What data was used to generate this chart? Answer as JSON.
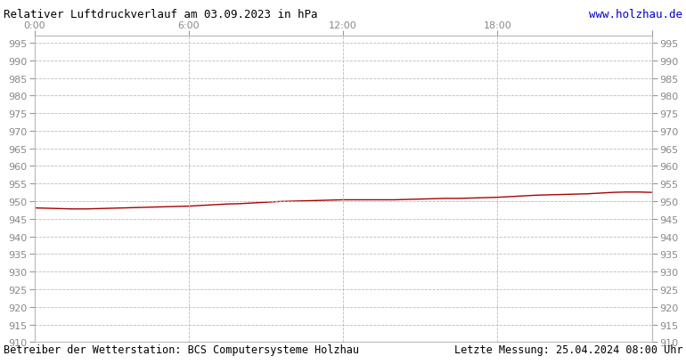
{
  "title": "Relativer Luftdruckverlauf am 03.09.2023 in hPa",
  "url": "www.holzhau.de",
  "footer_left": "Betreiber der Wetterstation: BCS Computersysteme Holzhau",
  "footer_right": "Letzte Messung: 25.04.2024 08:00 Uhr",
  "bg_color": "#ffffff",
  "plot_bg_color": "#ffffff",
  "line_color": "#aa0000",
  "grid_color": "#bbbbbb",
  "title_color": "#000000",
  "url_color": "#0000cc",
  "footer_color": "#000000",
  "tick_label_color": "#888888",
  "ylim": [
    910,
    997
  ],
  "ytick_min": 910,
  "ytick_max": 995,
  "ytick_step": 5,
  "xlim": [
    0,
    1440
  ],
  "xticks": [
    0,
    360,
    720,
    1080,
    1440
  ],
  "xtick_labels": [
    "0:00",
    "6:00",
    "12:00",
    "18:00",
    ""
  ],
  "pressure_x": [
    0,
    30,
    60,
    90,
    120,
    150,
    180,
    210,
    240,
    270,
    300,
    330,
    360,
    390,
    420,
    450,
    480,
    510,
    540,
    570,
    600,
    630,
    660,
    690,
    720,
    750,
    780,
    810,
    840,
    870,
    900,
    930,
    960,
    990,
    1020,
    1050,
    1080,
    1110,
    1140,
    1170,
    1200,
    1230,
    1260,
    1290,
    1320,
    1350,
    1380,
    1410,
    1440
  ],
  "pressure_y": [
    948.1,
    948.0,
    947.9,
    947.8,
    947.8,
    947.9,
    948.0,
    948.1,
    948.2,
    948.3,
    948.4,
    948.5,
    948.6,
    948.8,
    949.0,
    949.2,
    949.3,
    949.5,
    949.7,
    949.9,
    950.0,
    950.1,
    950.2,
    950.3,
    950.4,
    950.4,
    950.4,
    950.4,
    950.4,
    950.5,
    950.6,
    950.7,
    950.8,
    950.8,
    950.9,
    951.0,
    951.1,
    951.3,
    951.5,
    951.7,
    951.8,
    951.9,
    952.0,
    952.1,
    952.3,
    952.5,
    952.6,
    952.6,
    952.5
  ],
  "title_fontsize": 9,
  "url_fontsize": 9,
  "footer_fontsize": 8.5,
  "tick_fontsize": 8
}
